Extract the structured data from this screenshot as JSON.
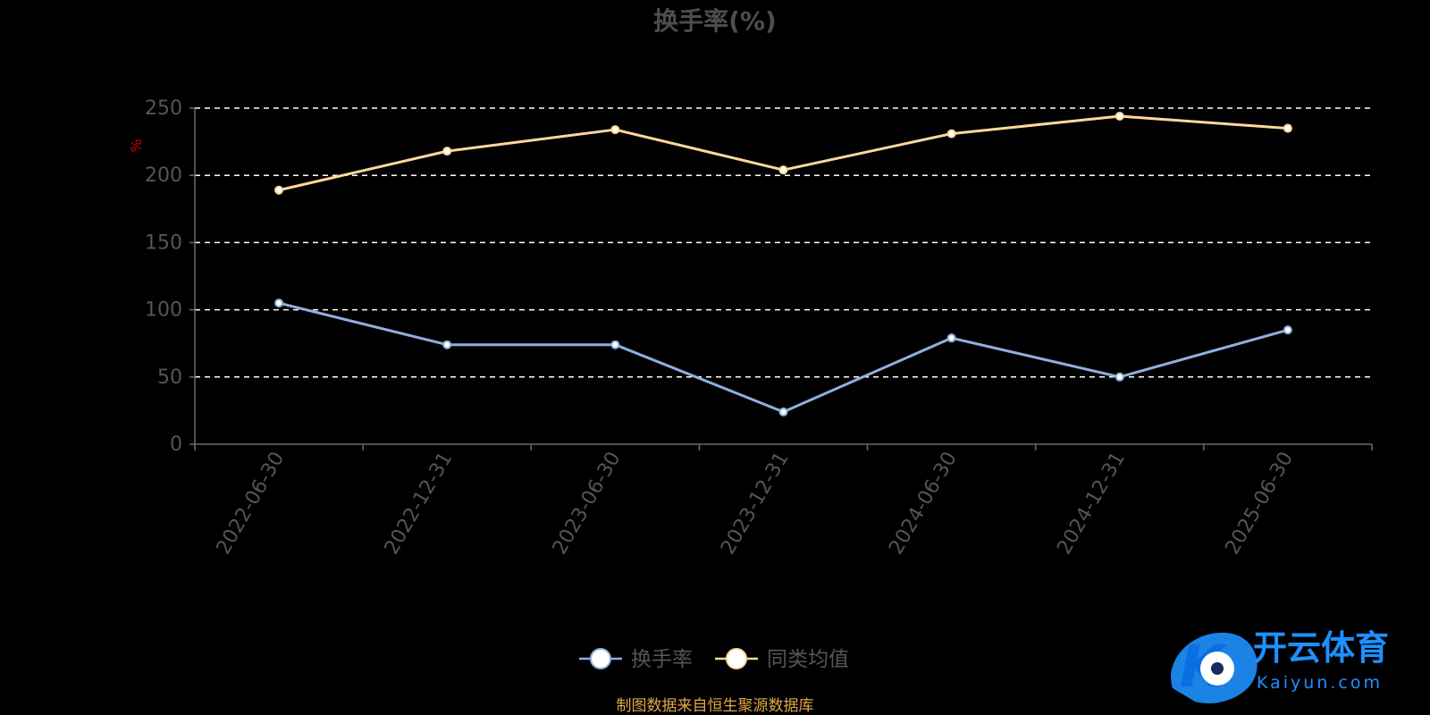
{
  "colors": {
    "background": "#000000",
    "turnover": "#8fb0de",
    "peer_average": "#ffd89a",
    "axis": "#6b6b6b",
    "grid": "#ffffff",
    "tick_text": "#555555",
    "title_text": "#4d4d4d",
    "ylabel": "#cc0000",
    "source_text": "#e3a64a",
    "logo_primary": "#1e90ff"
  },
  "chart_data": {
    "type": "line",
    "title": "换手率(%)",
    "ylabel": "%",
    "ylim": [
      0,
      250
    ],
    "yticks": [
      0,
      50,
      100,
      150,
      200,
      250
    ],
    "grid": true,
    "grid_style": "dashed",
    "legend_position": "bottom-center",
    "categories": [
      "2022-06-30",
      "2022-12-31",
      "2023-06-30",
      "2023-12-31",
      "2024-06-30",
      "2024-12-31",
      "2025-06-30"
    ],
    "series": [
      {
        "name": "换手率",
        "values": [
          105,
          74,
          74,
          24,
          79,
          50,
          85
        ]
      },
      {
        "name": "同类均值",
        "values": [
          189,
          218,
          234,
          204,
          231,
          244,
          235
        ]
      }
    ]
  },
  "source_note": "制图数据来自恒生聚源数据库",
  "watermark": {
    "cn": "开云体育",
    "en": "Kaiyun.com",
    "mark": "K"
  }
}
